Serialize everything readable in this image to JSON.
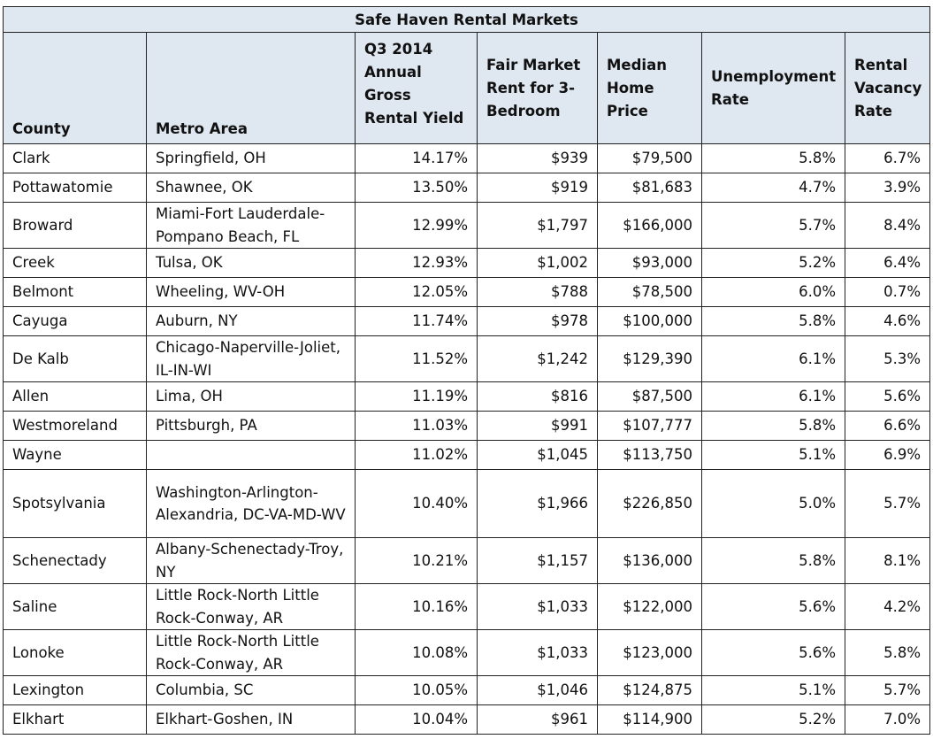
{
  "table": {
    "title": "Safe Haven Rental Markets",
    "headers": [
      "County",
      "Metro Area",
      "Q3 2014 Annual Gross Rental Yield",
      "Fair Market Rent for 3-Bedroom",
      "Median Home Price",
      "Unemployment Rate",
      "Rental Vacancy Rate"
    ],
    "rows": [
      {
        "county": "Clark",
        "metro": "Springfield, OH",
        "yield": "14.17%",
        "rent": "$939",
        "price": "$79,500",
        "unemployment": "5.8%",
        "vacancy": "6.7%"
      },
      {
        "county": "Pottawatomie",
        "metro": "Shawnee, OK",
        "yield": "13.50%",
        "rent": "$919",
        "price": "$81,683",
        "unemployment": "4.7%",
        "vacancy": "3.9%"
      },
      {
        "county": "Broward",
        "metro": "Miami-Fort Lauderdale-Pompano Beach, FL",
        "yield": "12.99%",
        "rent": "$1,797",
        "price": "$166,000",
        "unemployment": "5.7%",
        "vacancy": "8.4%"
      },
      {
        "county": "Creek",
        "metro": "Tulsa, OK",
        "yield": "12.93%",
        "rent": "$1,002",
        "price": "$93,000",
        "unemployment": "5.2%",
        "vacancy": "6.4%"
      },
      {
        "county": "Belmont",
        "metro": "Wheeling, WV-OH",
        "yield": "12.05%",
        "rent": "$788",
        "price": "$78,500",
        "unemployment": "6.0%",
        "vacancy": "0.7%"
      },
      {
        "county": "Cayuga",
        "metro": "Auburn, NY",
        "yield": "11.74%",
        "rent": "$978",
        "price": "$100,000",
        "unemployment": "5.8%",
        "vacancy": "4.6%"
      },
      {
        "county": "De Kalb",
        "metro": "Chicago-Naperville-Joliet, IL-IN-WI",
        "yield": "11.52%",
        "rent": "$1,242",
        "price": "$129,390",
        "unemployment": "6.1%",
        "vacancy": "5.3%"
      },
      {
        "county": "Allen",
        "metro": "Lima, OH",
        "yield": "11.19%",
        "rent": "$816",
        "price": "$87,500",
        "unemployment": "6.1%",
        "vacancy": "5.6%"
      },
      {
        "county": "Westmoreland",
        "metro": "Pittsburgh, PA",
        "yield": "11.03%",
        "rent": "$991",
        "price": "$107,777",
        "unemployment": "5.8%",
        "vacancy": "6.6%"
      },
      {
        "county": "Wayne",
        "metro": "",
        "yield": "11.02%",
        "rent": "$1,045",
        "price": "$113,750",
        "unemployment": "5.1%",
        "vacancy": "6.9%"
      },
      {
        "county": "Spotsylvania",
        "metro": "Washington-Arlington-Alexandria, DC-VA-MD-WV",
        "yield": "10.40%",
        "rent": "$1,966",
        "price": "$226,850",
        "unemployment": "5.0%",
        "vacancy": "5.7%"
      },
      {
        "county": "Schenectady",
        "metro": "Albany-Schenectady-Troy, NY",
        "yield": "10.21%",
        "rent": "$1,157",
        "price": "$136,000",
        "unemployment": "5.8%",
        "vacancy": "8.1%"
      },
      {
        "county": "Saline",
        "metro": "Little Rock-North Little Rock-Conway, AR",
        "yield": "10.16%",
        "rent": "$1,033",
        "price": "$122,000",
        "unemployment": "5.6%",
        "vacancy": "4.2%"
      },
      {
        "county": "Lonoke",
        "metro": "Little Rock-North Little Rock-Conway, AR",
        "yield": "10.08%",
        "rent": "$1,033",
        "price": "$123,000",
        "unemployment": "5.6%",
        "vacancy": "5.8%"
      },
      {
        "county": "Lexington",
        "metro": "Columbia, SC",
        "yield": "10.05%",
        "rent": "$1,046",
        "price": "$124,875",
        "unemployment": "5.1%",
        "vacancy": "5.7%"
      },
      {
        "county": "Elkhart",
        "metro": "Elkhart-Goshen, IN",
        "yield": "10.04%",
        "rent": "$961",
        "price": "$114,900",
        "unemployment": "5.2%",
        "vacancy": "7.0%"
      }
    ]
  }
}
